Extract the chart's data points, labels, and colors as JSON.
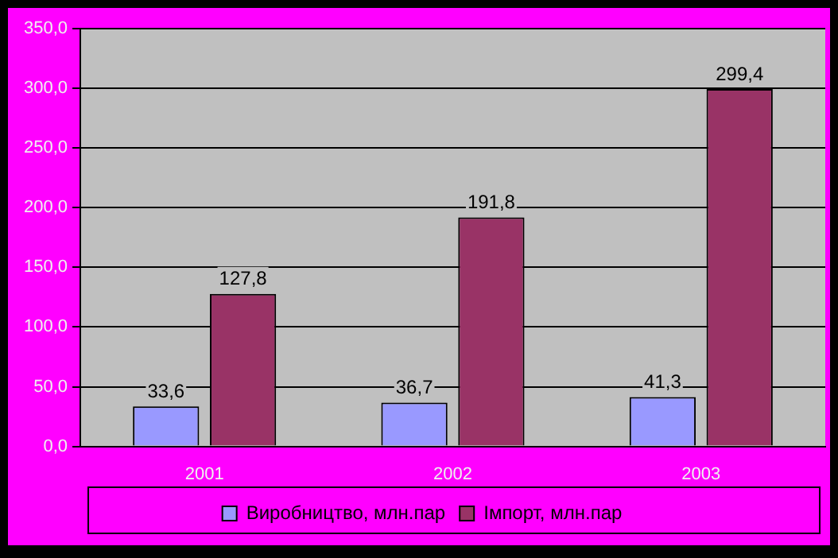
{
  "chart_data": {
    "type": "bar",
    "categories": [
      "2001",
      "2002",
      "2003"
    ],
    "series": [
      {
        "name": "Виробництво, млн.пар",
        "color": "#9999ff",
        "values": [
          33.6,
          36.7,
          41.3
        ],
        "value_labels": [
          "33,6",
          "36,7",
          "41,3"
        ]
      },
      {
        "name": "Імпорт, млн.пар",
        "color": "#993366",
        "values": [
          127.8,
          191.8,
          299.4
        ],
        "value_labels": [
          "127,8",
          "191,8",
          "299,4"
        ]
      }
    ],
    "ylim": [
      0,
      350
    ],
    "yticks": [
      {
        "value": 0,
        "label": "0,0"
      },
      {
        "value": 50,
        "label": "50,0"
      },
      {
        "value": 100,
        "label": "100,0"
      },
      {
        "value": 150,
        "label": "150,0"
      },
      {
        "value": 200,
        "label": "200,0"
      },
      {
        "value": 250,
        "label": "250,0"
      },
      {
        "value": 300,
        "label": "300,0"
      },
      {
        "value": 350,
        "label": "350,0"
      }
    ],
    "grid": "y",
    "legend": "bottom"
  }
}
